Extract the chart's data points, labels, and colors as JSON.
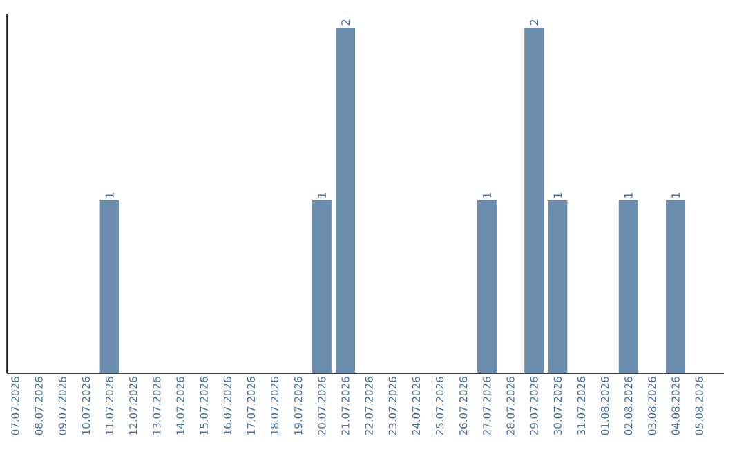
{
  "chart_data": {
    "type": "bar",
    "categories": [
      "07.07.2026",
      "08.07.2026",
      "09.07.2026",
      "10.07.2026",
      "11.07.2026",
      "12.07.2026",
      "13.07.2026",
      "14.07.2026",
      "15.07.2026",
      "16.07.2026",
      "17.07.2026",
      "18.07.2026",
      "19.07.2026",
      "20.07.2026",
      "21.07.2026",
      "22.07.2026",
      "23.07.2026",
      "24.07.2026",
      "25.07.2026",
      "26.07.2026",
      "27.07.2026",
      "28.07.2026",
      "29.07.2026",
      "30.07.2026",
      "31.07.2026",
      "01.08.2026",
      "02.08.2026",
      "03.08.2026",
      "04.08.2026",
      "05.08.2026"
    ],
    "values": [
      0,
      0,
      0,
      0,
      1,
      0,
      0,
      0,
      0,
      0,
      0,
      0,
      0,
      1,
      2,
      0,
      0,
      0,
      0,
      0,
      1,
      0,
      2,
      1,
      0,
      0,
      1,
      0,
      1,
      0
    ],
    "value_labels": [
      null,
      null,
      null,
      null,
      "1",
      null,
      null,
      null,
      null,
      null,
      null,
      null,
      null,
      "1",
      "2",
      null,
      null,
      null,
      null,
      null,
      "1",
      null,
      "2",
      "1",
      null,
      null,
      "1",
      null,
      "1",
      null
    ],
    "color": "#6a8cad",
    "tick_labels": "x"
  }
}
